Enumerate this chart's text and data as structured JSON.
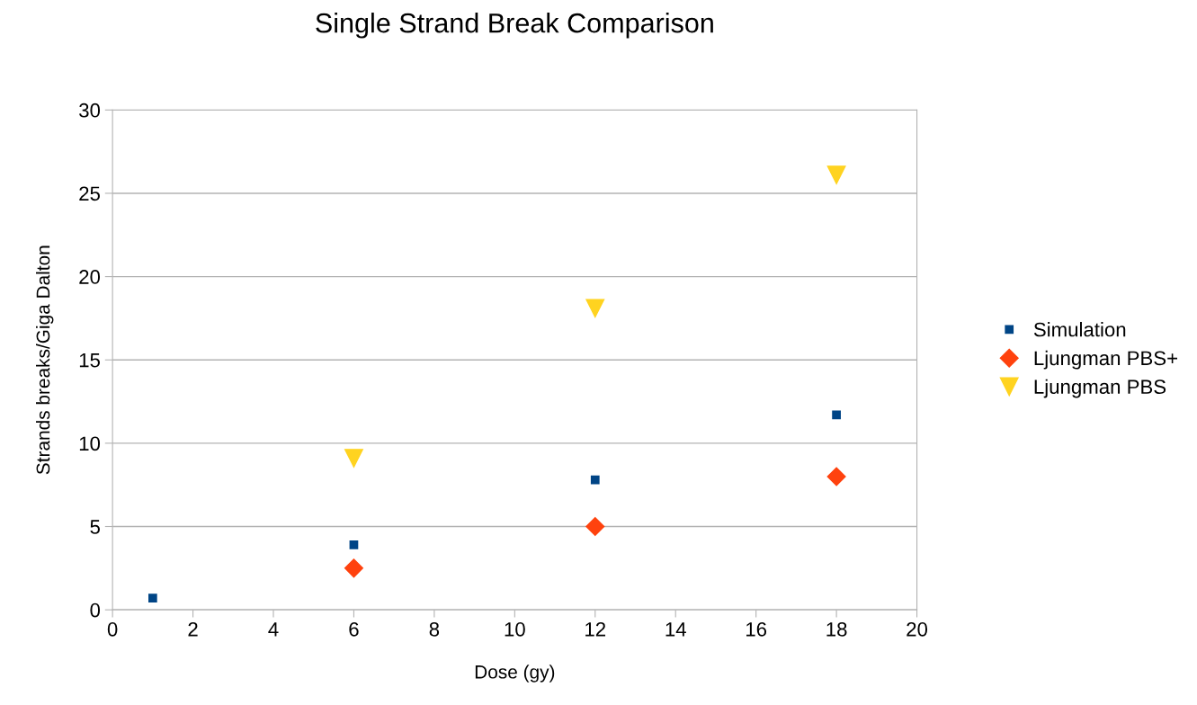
{
  "chart_data": {
    "type": "scatter",
    "title": "Single Strand Break Comparison",
    "xlabel": "Dose (gy)",
    "ylabel": "Strands breaks/Giga Dalton",
    "xlim": [
      0,
      20
    ],
    "xticks": [
      0,
      2,
      4,
      6,
      8,
      10,
      12,
      14,
      16,
      18,
      20
    ],
    "ylim": [
      0,
      30
    ],
    "yticks": [
      0,
      5,
      10,
      15,
      20,
      25,
      30
    ],
    "grid": "y",
    "legend": "right",
    "series": [
      {
        "name": "Simulation",
        "color": "#004586",
        "marker": "square",
        "x": [
          1,
          6,
          12,
          18
        ],
        "values": [
          0.7,
          3.9,
          7.8,
          11.7
        ]
      },
      {
        "name": "Ljungman PBS+",
        "color": "#ff420e",
        "marker": "diamond",
        "x": [
          6,
          12,
          18
        ],
        "values": [
          2.5,
          5,
          8
        ]
      },
      {
        "name": "Ljungman PBS",
        "color": "#ffd320",
        "marker": "triangle",
        "x": [
          6,
          12,
          18
        ],
        "values": [
          9.1,
          18.1,
          26.1
        ]
      }
    ]
  }
}
